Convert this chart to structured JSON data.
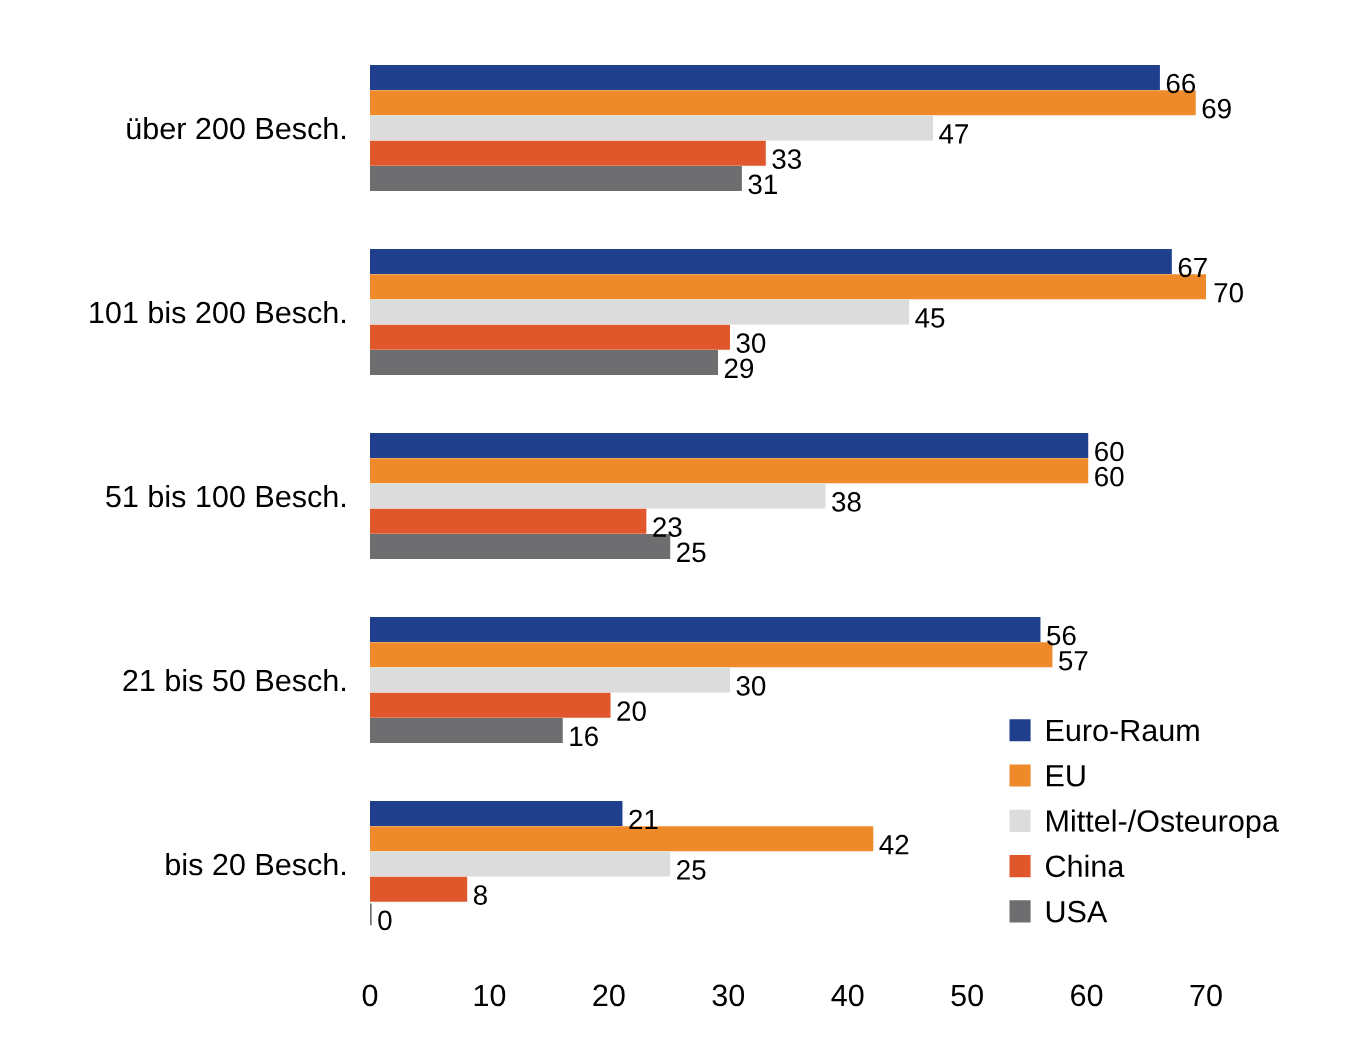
{
  "chart_data": {
    "type": "bar",
    "orientation": "horizontal",
    "categories": [
      "über 200 Besch.",
      "101 bis 200 Besch.",
      "51 bis 100 Besch.",
      "21 bis 50 Besch.",
      "bis 20 Besch."
    ],
    "series": [
      {
        "name": "Euro-Raum",
        "color": "#203f8c",
        "values": [
          66,
          67,
          60,
          56,
          21
        ]
      },
      {
        "name": "EU",
        "color": "#ee8a2a",
        "values": [
          69,
          70,
          60,
          57,
          42
        ]
      },
      {
        "name": "Mittel-/Osteuropa",
        "color": "#dcdcdc",
        "values": [
          47,
          45,
          38,
          30,
          25
        ]
      },
      {
        "name": "China",
        "color": "#e0572b",
        "values": [
          33,
          30,
          23,
          20,
          8
        ]
      },
      {
        "name": "USA",
        "color": "#6e6e70",
        "values": [
          31,
          29,
          25,
          16,
          0
        ]
      }
    ],
    "xlim": [
      0,
      70
    ],
    "xticks": [
      0,
      10,
      20,
      30,
      40,
      50,
      60,
      70
    ],
    "data_labels": true,
    "grid": false,
    "legend": "bottom right"
  }
}
